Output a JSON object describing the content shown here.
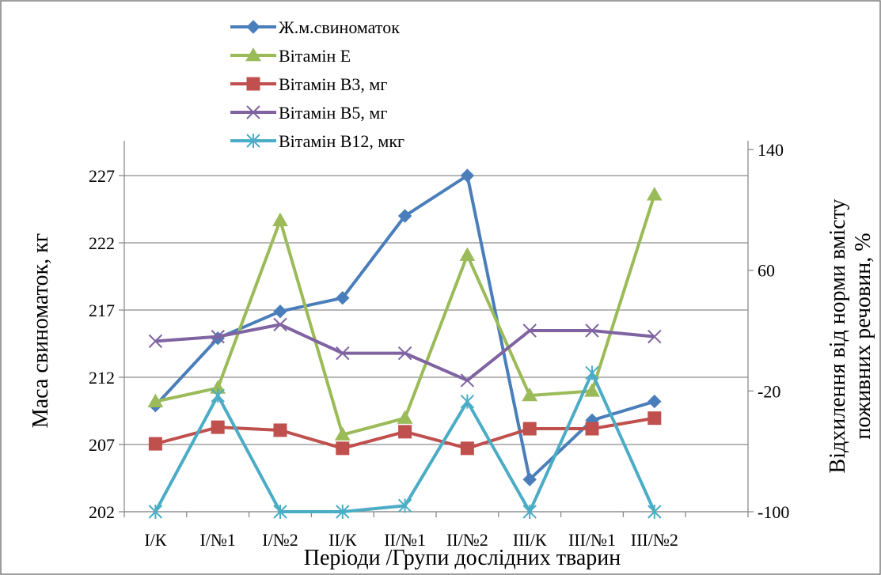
{
  "chart_data": {
    "type": "line",
    "categories": [
      "І/К",
      "І/№1",
      "І/№2",
      "ІІ/К",
      "ІІ/№1",
      "ІІ/№2",
      "ІІІ/К",
      "ІІІ/№1",
      "ІІІ/№2"
    ],
    "xlabel": "Періоди /Групи дослідних тварин",
    "ylabel_left": "Маса свиноматок, кг",
    "ylabel_right": [
      "Відхилення від норми вмісту",
      "поживних речовин, %"
    ],
    "y_left": {
      "min": 202,
      "max": 227,
      "ticks": [
        202,
        207,
        212,
        217,
        222,
        227
      ]
    },
    "y_right": {
      "min": -100,
      "max": 140,
      "ticks": [
        -100,
        -20,
        60,
        140
      ]
    },
    "grid": true,
    "legend_position": "top-center",
    "series": [
      {
        "name": "Ж.м.свиноматок",
        "axis": "left",
        "marker": "diamond",
        "color": "#4A7EBB",
        "values": [
          209.9,
          214.9,
          216.9,
          217.9,
          224.0,
          227.0,
          204.4,
          208.8,
          210.2
        ]
      },
      {
        "name": "Вітамін Е",
        "axis": "right",
        "marker": "triangle",
        "color": "#9BBB59",
        "values": [
          -27,
          -18,
          93,
          -49,
          -38,
          70,
          -23,
          -20,
          110
        ]
      },
      {
        "name": "Вітамін В3, мг",
        "axis": "right",
        "marker": "square",
        "color": "#C0504D",
        "values": [
          -55,
          -44,
          -46,
          -58,
          -47,
          -58,
          -45,
          -45,
          -38
        ]
      },
      {
        "name": "Вітамін В5, мг",
        "axis": "right",
        "marker": "x",
        "color": "#8064A2",
        "values": [
          13,
          16,
          24,
          5,
          5,
          -13,
          20,
          20,
          16
        ]
      },
      {
        "name": "Вітамін В12, мкг",
        "axis": "right",
        "marker": "star",
        "color": "#4BACC6",
        "values": [
          -100,
          -23,
          -100,
          -100,
          -96,
          -27,
          -100,
          -8,
          -100
        ]
      }
    ]
  }
}
